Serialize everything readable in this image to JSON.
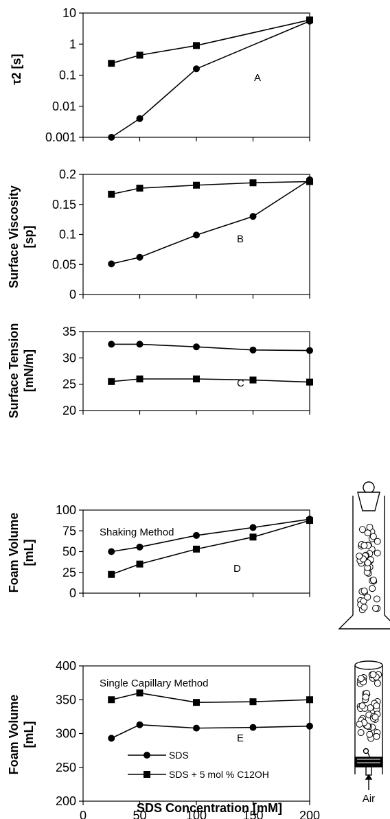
{
  "colors": {
    "ink": "#000000",
    "background": "#ffffff"
  },
  "x_axis": {
    "label": "SDS Concentration [mM]",
    "ticks": [
      "0",
      "50",
      "100",
      "150",
      "200"
    ],
    "range": [
      0,
      200
    ]
  },
  "legend": {
    "entries": [
      {
        "label": "SDS",
        "marker": "circle"
      },
      {
        "label": "SDS + 5 mol % C12OH",
        "marker": "square"
      }
    ]
  },
  "air_label": "Air",
  "chart_data": [
    {
      "type": "line",
      "panel": "A",
      "ylabel": "τ2 [s]",
      "yscale": "log",
      "ylim": [
        0.001,
        10
      ],
      "yticks": [
        "10",
        "1",
        "0.1",
        "0.01",
        "0.001"
      ],
      "note": "",
      "series": [
        {
          "name": "SDS",
          "marker": "circle",
          "x": [
            25,
            50,
            100,
            200
          ],
          "y": [
            0.001,
            0.004,
            0.16,
            5.5
          ]
        },
        {
          "name": "SDS + 5 mol % C12OH",
          "marker": "square",
          "x": [
            25,
            50,
            100,
            200
          ],
          "y": [
            0.24,
            0.44,
            0.9,
            6.0
          ]
        }
      ]
    },
    {
      "type": "line",
      "panel": "B",
      "ylabel": "Surface Viscosity [sp]",
      "yscale": "linear",
      "ylim": [
        0,
        0.2
      ],
      "yticks": [
        "0.2",
        "0.15",
        "0.1",
        "0.05",
        "0"
      ],
      "note": "",
      "series": [
        {
          "name": "SDS",
          "marker": "circle",
          "x": [
            25,
            50,
            100,
            150,
            200
          ],
          "y": [
            0.051,
            0.062,
            0.099,
            0.13,
            0.191
          ]
        },
        {
          "name": "SDS + 5 mol % C12OH",
          "marker": "square",
          "x": [
            25,
            50,
            100,
            150,
            200
          ],
          "y": [
            0.167,
            0.177,
            0.182,
            0.186,
            0.188
          ]
        }
      ]
    },
    {
      "type": "line",
      "panel": "C",
      "ylabel": "Surface Tension [mN/m]",
      "yscale": "linear",
      "ylim": [
        20,
        35
      ],
      "yticks": [
        "35",
        "30",
        "25",
        "20"
      ],
      "note": "",
      "series": [
        {
          "name": "SDS",
          "marker": "circle",
          "x": [
            25,
            50,
            100,
            150,
            200
          ],
          "y": [
            32.6,
            32.6,
            32.1,
            31.5,
            31.4
          ]
        },
        {
          "name": "SDS + 5 mol % C12OH",
          "marker": "square",
          "x": [
            25,
            50,
            100,
            150,
            200
          ],
          "y": [
            25.5,
            26.0,
            26.0,
            25.8,
            25.4
          ]
        }
      ]
    },
    {
      "type": "line",
      "panel": "D",
      "ylabel": "Foam Volume [mL]",
      "yscale": "linear",
      "ylim": [
        0,
        100
      ],
      "yticks": [
        "100",
        "75",
        "50",
        "25",
        "0"
      ],
      "note": "Shaking Method",
      "series": [
        {
          "name": "SDS",
          "marker": "circle",
          "x": [
            25,
            50,
            100,
            150,
            200
          ],
          "y": [
            50,
            55.5,
            69.5,
            79,
            89
          ]
        },
        {
          "name": "SDS + 5 mol % C12OH",
          "marker": "square",
          "x": [
            25,
            50,
            100,
            150,
            200
          ],
          "y": [
            22.5,
            35,
            53,
            67.5,
            87.5
          ]
        }
      ]
    },
    {
      "type": "line",
      "panel": "E",
      "ylabel": "Foam Volume [mL]",
      "yscale": "linear",
      "ylim": [
        200,
        400
      ],
      "yticks": [
        "400",
        "350",
        "300",
        "250",
        "200"
      ],
      "note": "Single Capillary Method",
      "series": [
        {
          "name": "SDS",
          "marker": "circle",
          "x": [
            25,
            50,
            100,
            150,
            200
          ],
          "y": [
            293,
            313,
            308,
            309,
            311
          ]
        },
        {
          "name": "SDS + 5 mol % C12OH",
          "marker": "square",
          "x": [
            25,
            50,
            100,
            150,
            200
          ],
          "y": [
            350,
            360,
            346,
            347,
            350
          ]
        }
      ]
    }
  ]
}
